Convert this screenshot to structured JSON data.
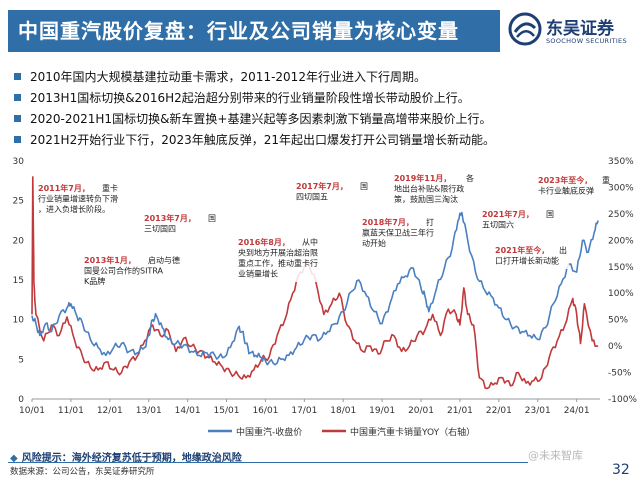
{
  "header": {
    "title": "中国重汽股价复盘：行业及公司销量为核心变量",
    "logo_cn": "东吴证券",
    "logo_en": "SOOCHOW SECURITIES"
  },
  "bullets": [
    "2010年国内大规模基建拉动重卡需求，2011-2012年行业进入下行周期。",
    "2013H1国标切换&2016H2起治超分别带来的行业销量阶段性增长带动股价上行。",
    "2020-2021H1国标切换&新车置换+基建兴起等多因素刺激下销量高增带来股价上行。",
    "2021H2开始行业下行，2023年触底反弹，21年起出口爆发打开公司销量增长新动能。"
  ],
  "colors": {
    "accent": "#2f6ea6",
    "price_line": "#4a7fc1",
    "yoy_line": "#c0393b",
    "annotation_red": "#c0393b"
  },
  "chart_data": {
    "type": "line",
    "x_ticks": [
      "10/01",
      "11/01",
      "12/01",
      "13/01",
      "14/01",
      "15/01",
      "16/01",
      "17/01",
      "18/01",
      "19/01",
      "20/01",
      "21/01",
      "22/01",
      "23/01",
      "24/01"
    ],
    "y_left_ticks": [
      "0",
      "5",
      "10",
      "15",
      "20",
      "25",
      "30"
    ],
    "y_right_ticks": [
      "-100%",
      "-50%",
      "0%",
      "50%",
      "100%",
      "150%",
      "200%",
      "250%",
      "300%",
      "350%"
    ],
    "ylim_left": [
      0,
      30
    ],
    "ylim_right": [
      -100,
      350
    ],
    "x_range": [
      2010.0,
      2024.6
    ],
    "series": [
      {
        "name": "中国重汽-收盘价",
        "axis": "left",
        "t": [
          2010.0,
          2010.1,
          2010.2,
          2010.35,
          2010.5,
          2010.7,
          2010.9,
          2011.0,
          2011.15,
          2011.3,
          2011.5,
          2011.7,
          2011.9,
          2012.1,
          2012.3,
          2012.5,
          2012.7,
          2012.9,
          2013.0,
          2013.1,
          2013.2,
          2013.35,
          2013.5,
          2013.7,
          2013.9,
          2014.1,
          2014.3,
          2014.5,
          2014.7,
          2014.9,
          2015.1,
          2015.3,
          2015.4,
          2015.5,
          2015.6,
          2015.75,
          2015.9,
          2016.0,
          2016.2,
          2016.4,
          2016.6,
          2016.8,
          2017.0,
          2017.2,
          2017.4,
          2017.6,
          2017.8,
          2018.0,
          2018.2,
          2018.4,
          2018.6,
          2018.8,
          2019.0,
          2019.2,
          2019.4,
          2019.6,
          2019.8,
          2020.0,
          2020.1,
          2020.2,
          2020.4,
          2020.6,
          2020.8,
          2020.95,
          2021.05,
          2021.2,
          2021.4,
          2021.6,
          2021.8,
          2022.0,
          2022.2,
          2022.4,
          2022.6,
          2022.8,
          2023.0,
          2023.2,
          2023.4,
          2023.6,
          2023.8,
          2024.0,
          2024.15,
          2024.3,
          2024.45,
          2024.55
        ],
        "values": [
          10.5,
          9.5,
          8.0,
          9.5,
          8.5,
          10.5,
          11.5,
          12.0,
          10.5,
          9.5,
          7.5,
          6.5,
          5.5,
          6.5,
          7.0,
          6.0,
          5.8,
          6.5,
          8.0,
          10.0,
          10.5,
          9.0,
          7.5,
          7.0,
          6.8,
          6.0,
          5.5,
          5.8,
          5.5,
          5.2,
          6.5,
          9.0,
          8.5,
          7.0,
          5.8,
          5.5,
          5.2,
          4.8,
          4.5,
          5.0,
          5.5,
          6.5,
          7.5,
          8.0,
          7.5,
          8.5,
          9.5,
          11.0,
          13.5,
          15.0,
          13.0,
          11.0,
          9.5,
          12.0,
          14.5,
          15.5,
          16.5,
          14.0,
          13.0,
          11.0,
          14.0,
          16.5,
          19.0,
          22.5,
          23.5,
          20.0,
          16.0,
          14.0,
          13.0,
          11.5,
          10.0,
          9.0,
          8.5,
          8.0,
          7.5,
          9.0,
          12.0,
          14.5,
          17.0,
          16.0,
          20.0,
          18.5,
          21.0,
          22.5
        ]
      },
      {
        "name": "中国重汽重卡销量YOY（右轴）",
        "axis": "right",
        "t": [
          2010.0,
          2010.02,
          2010.05,
          2010.1,
          2010.3,
          2010.5,
          2010.7,
          2010.9,
          2011.1,
          2011.3,
          2011.5,
          2011.7,
          2011.9,
          2012.1,
          2012.3,
          2012.5,
          2012.7,
          2012.9,
          2013.1,
          2013.3,
          2013.5,
          2013.7,
          2013.9,
          2014.1,
          2014.3,
          2014.5,
          2014.7,
          2014.9,
          2015.1,
          2015.3,
          2015.5,
          2015.7,
          2015.9,
          2016.1,
          2016.3,
          2016.5,
          2016.7,
          2016.9,
          2017.1,
          2017.3,
          2017.5,
          2017.7,
          2017.9,
          2018.1,
          2018.3,
          2018.5,
          2018.7,
          2018.9,
          2019.1,
          2019.3,
          2019.5,
          2019.7,
          2019.9,
          2020.1,
          2020.3,
          2020.5,
          2020.7,
          2020.9,
          2021.0,
          2021.1,
          2021.2,
          2021.35,
          2021.5,
          2021.7,
          2021.9,
          2022.1,
          2022.3,
          2022.5,
          2022.7,
          2022.9,
          2023.1,
          2023.3,
          2023.5,
          2023.7,
          2023.9,
          2024.0,
          2024.1,
          2024.2,
          2024.4,
          2024.55
        ],
        "values": [
          60,
          320,
          120,
          60,
          10,
          40,
          20,
          55,
          10,
          -20,
          -40,
          -45,
          -30,
          -45,
          -50,
          -30,
          -20,
          10,
          40,
          20,
          30,
          -10,
          15,
          0,
          -10,
          -20,
          -30,
          -40,
          -50,
          -55,
          -60,
          -45,
          -25,
          -20,
          20,
          50,
          100,
          140,
          160,
          120,
          60,
          80,
          100,
          40,
          10,
          -10,
          0,
          -15,
          10,
          20,
          -10,
          0,
          20,
          30,
          60,
          20,
          70,
          60,
          40,
          110,
          60,
          40,
          -60,
          -80,
          -70,
          -60,
          -75,
          -50,
          -70,
          -65,
          -60,
          -20,
          10,
          40,
          90,
          60,
          5,
          80,
          10,
          0
        ]
      }
    ],
    "annotations": [
      {
        "label": "2011年7月，",
        "text": "重卡行业销量增速转负下滑，进入负增长阶段。"
      },
      {
        "label": "2013年7月，",
        "text": "国三切国四"
      },
      {
        "label": "2013年1月，",
        "text": "启动与德国曼公司合作的SITRAK品牌"
      },
      {
        "label": "2016年8月，",
        "text": "从中央到地方开展治超治限重点工作，推动重卡行业销量增长"
      },
      {
        "label": "2017年7月，",
        "text": "国四切国五"
      },
      {
        "label": "2018年7月，",
        "text": "打赢蓝天保卫战三年行动开始"
      },
      {
        "label": "2019年11月，",
        "text": "各地出台补贴&限行政策，鼓励国三淘汰"
      },
      {
        "label": "2021年7月，",
        "text": "国五切国六"
      },
      {
        "label": "2023年至今，",
        "text": "重卡行业触底反弹"
      },
      {
        "label": "2021年至今，",
        "text": "出口打开增长新动能"
      }
    ]
  },
  "footer": {
    "risk_label": "风险提示：",
    "risk_text": "海外经济复苏低于预期，地缘政治风险",
    "source": "数据来源：公司公告，东吴证券研究所",
    "watermark": "@未来智库",
    "page_number": "32"
  }
}
